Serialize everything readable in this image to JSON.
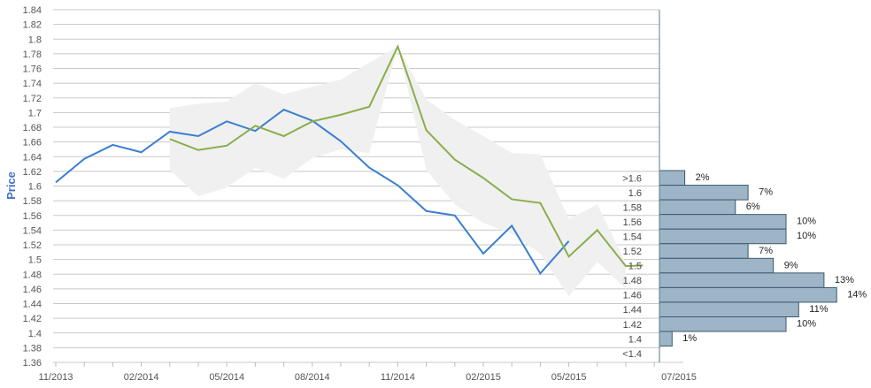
{
  "chart_data": {
    "type": "line",
    "ylabel": "Price",
    "ylim": [
      1.36,
      1.84
    ],
    "y_ticks": [
      "1.36",
      "1.38",
      "1.4",
      "1.42",
      "1.44",
      "1.46",
      "1.48",
      "1.5",
      "1.52",
      "1.54",
      "1.56",
      "1.58",
      "1.6",
      "1.62",
      "1.64",
      "1.66",
      "1.68",
      "1.7",
      "1.72",
      "1.74",
      "1.76",
      "1.78",
      "1.8",
      "1.82",
      "1.84"
    ],
    "x_ticks": [
      "11/2013",
      "02/2014",
      "05/2014",
      "08/2014",
      "11/2014",
      "02/2015",
      "05/2015",
      "07/2015"
    ],
    "grid": true,
    "series": [
      {
        "color": "#3b7fcf",
        "x": [
          "11/2013",
          "12/2013",
          "01/2014",
          "02/2014",
          "03/2014",
          "04/2014",
          "05/2014",
          "06/2014",
          "07/2014",
          "08/2014",
          "09/2014",
          "10/2014",
          "11/2014",
          "12/2014",
          "01/2015",
          "02/2015",
          "03/2015",
          "04/2015",
          "05/2015"
        ],
        "values": [
          1.605,
          1.637,
          1.656,
          1.646,
          1.674,
          1.668,
          1.688,
          1.675,
          1.704,
          1.689,
          1.661,
          1.625,
          1.601,
          1.566,
          1.56,
          1.508,
          1.546,
          1.481,
          1.525
        ]
      },
      {
        "color": "#8aae4c",
        "x": [
          "03/2014",
          "04/2014",
          "05/2014",
          "06/2014",
          "07/2014",
          "08/2014",
          "09/2014",
          "10/2014",
          "11/2014",
          "12/2014",
          "01/2015",
          "02/2015",
          "03/2015",
          "04/2015",
          "05/2015",
          "06/2015",
          "07/2015",
          "07/2015+"
        ],
        "values": [
          1.664,
          1.649,
          1.655,
          1.682,
          1.668,
          1.688,
          1.697,
          1.708,
          1.79,
          1.676,
          1.636,
          1.611,
          1.582,
          1.577,
          1.504,
          1.54,
          1.491,
          1.492
        ]
      }
    ],
    "band": {
      "color": "#f0f0f0",
      "x": [
        "03/2014",
        "04/2014",
        "05/2014",
        "06/2014",
        "07/2014",
        "08/2014",
        "09/2014",
        "10/2014",
        "11/2014",
        "12/2014",
        "01/2015",
        "02/2015",
        "03/2015",
        "04/2015",
        "05/2015",
        "06/2015",
        "07/2015"
      ],
      "upper": [
        1.706,
        1.712,
        1.715,
        1.74,
        1.725,
        1.735,
        1.745,
        1.768,
        1.79,
        1.718,
        1.69,
        1.668,
        1.645,
        1.643,
        1.555,
        1.575,
        1.495
      ],
      "lower": [
        1.622,
        1.586,
        1.598,
        1.625,
        1.61,
        1.638,
        1.65,
        1.645,
        1.79,
        1.622,
        1.575,
        1.55,
        1.535,
        1.508,
        1.45,
        1.497,
        1.46
      ]
    },
    "histogram": {
      "color": "#9db5c6",
      "bins": [
        {
          "label": ">1.6",
          "value": 2,
          "text": "2%"
        },
        {
          "label": "1.6",
          "value": 7,
          "text": "7%"
        },
        {
          "label": "1.58",
          "value": 6,
          "text": "6%"
        },
        {
          "label": "1.56",
          "value": 10,
          "text": "10%"
        },
        {
          "label": "1.54",
          "value": 10,
          "text": "10%"
        },
        {
          "label": "1.52",
          "value": 7,
          "text": "7%"
        },
        {
          "label": "1.5",
          "value": 9,
          "text": "9%"
        },
        {
          "label": "1.48",
          "value": 13,
          "text": "13%"
        },
        {
          "label": "1.46",
          "value": 14,
          "text": "14%"
        },
        {
          "label": "1.44",
          "value": 11,
          "text": "11%"
        },
        {
          "label": "1.42",
          "value": 10,
          "text": "10%"
        },
        {
          "label": "1.4",
          "value": 1,
          "text": "1%"
        },
        {
          "label": "<1.4",
          "value": 0,
          "text": ""
        }
      ]
    }
  }
}
